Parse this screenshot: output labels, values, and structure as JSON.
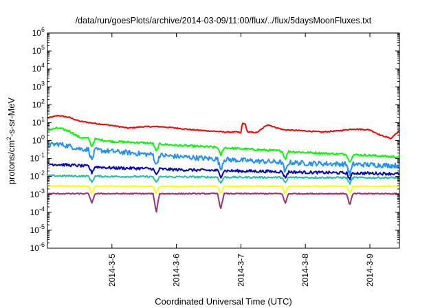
{
  "chart_data": {
    "type": "line",
    "title": "/data/run/goesPlots/archive/2014-03-09/11:00/flux/../flux/5daysMoonFluxes.txt",
    "xlabel": "Coordinated Universal Time (UTC)",
    "ylabel": {
      "base": "protons/cm",
      "sup": "2",
      "rest": "-s-sr-MeV"
    },
    "y_scale": "log",
    "ylim": [
      1e-06,
      1000000.0
    ],
    "y_ticks": [
      {
        "value": 1000000.0,
        "base": "10",
        "exp": "6"
      },
      {
        "value": 100000.0,
        "base": "10",
        "exp": "5"
      },
      {
        "value": 10000.0,
        "base": "10",
        "exp": "4"
      },
      {
        "value": 1000.0,
        "base": "10",
        "exp": "3"
      },
      {
        "value": 100.0,
        "base": "10",
        "exp": "2"
      },
      {
        "value": 10.0,
        "base": "10",
        "exp": "1"
      },
      {
        "value": 1.0,
        "base": "10",
        "exp": "0"
      },
      {
        "value": 0.1,
        "base": "10",
        "exp": "-1"
      },
      {
        "value": 0.01,
        "base": "10",
        "exp": "-2"
      },
      {
        "value": 0.001,
        "base": "10",
        "exp": "-3"
      },
      {
        "value": 0.0001,
        "base": "10",
        "exp": "-4"
      },
      {
        "value": 1e-05,
        "base": "10",
        "exp": "-5"
      },
      {
        "value": 1e-06,
        "base": "10",
        "exp": "-6"
      }
    ],
    "xlim": [
      "2014-03-04T00:00",
      "2014-03-09T11:00"
    ],
    "x_ticks": [
      {
        "value": "2014-03-05T00:00",
        "label": "2014-3-5"
      },
      {
        "value": "2014-03-06T00:00",
        "label": "2014-3-6"
      },
      {
        "value": "2014-03-07T00:00",
        "label": "2014-3-7"
      },
      {
        "value": "2014-03-08T00:00",
        "label": "2014-3-8"
      },
      {
        "value": "2014-03-09T00:00",
        "label": "2014-3-9"
      }
    ],
    "grid": false,
    "legend": "none",
    "series": [
      {
        "color": "#ff0000",
        "points": [
          [
            "2014-03-04T00:00",
            18
          ],
          [
            "2014-03-04T04:00",
            25
          ],
          [
            "2014-03-04T08:00",
            20
          ],
          [
            "2014-03-04T12:00",
            12
          ],
          [
            "2014-03-04T18:00",
            9
          ],
          [
            "2014-03-05T00:00",
            7
          ],
          [
            "2014-03-05T06:00",
            5
          ],
          [
            "2014-03-05T12:00",
            6
          ],
          [
            "2014-03-05T18:00",
            6
          ],
          [
            "2014-03-06T00:00",
            5
          ],
          [
            "2014-03-06T06:00",
            4
          ],
          [
            "2014-03-06T12:00",
            3.5
          ],
          [
            "2014-03-06T18:00",
            3
          ],
          [
            "2014-03-06T23:00",
            3
          ],
          [
            "2014-03-07T00:00",
            2.6
          ],
          [
            "2014-03-07T00:30",
            9
          ],
          [
            "2014-03-07T01:30",
            9
          ],
          [
            "2014-03-07T02:30",
            3
          ],
          [
            "2014-03-07T06:00",
            2.8
          ],
          [
            "2014-03-07T10:00",
            8
          ],
          [
            "2014-03-07T12:00",
            6
          ],
          [
            "2014-03-07T16:00",
            4
          ],
          [
            "2014-03-08T00:00",
            3.5
          ],
          [
            "2014-03-08T06:00",
            3
          ],
          [
            "2014-03-08T12:00",
            3.5
          ],
          [
            "2014-03-08T18:00",
            4.5
          ],
          [
            "2014-03-09T00:00",
            4
          ],
          [
            "2014-03-09T04:00",
            2
          ],
          [
            "2014-03-09T08:00",
            1.3
          ],
          [
            "2014-03-09T09:00",
            2
          ],
          [
            "2014-03-09T11:00",
            3.5
          ]
        ]
      },
      {
        "color": "#00ff00",
        "points": [
          [
            "2014-03-04T00:00",
            4
          ],
          [
            "2014-03-04T04:00",
            5
          ],
          [
            "2014-03-04T08:00",
            3.5
          ],
          [
            "2014-03-04T12:00",
            1.5
          ],
          [
            "2014-03-04T18:00",
            1.2
          ],
          [
            "2014-03-05T00:00",
            0.9
          ],
          [
            "2014-03-05T12:00",
            0.75
          ],
          [
            "2014-03-06T00:00",
            0.55
          ],
          [
            "2014-03-06T12:00",
            0.45
          ],
          [
            "2014-03-07T00:00",
            0.35
          ],
          [
            "2014-03-07T12:00",
            0.28
          ],
          [
            "2014-03-08T00:00",
            0.22
          ],
          [
            "2014-03-08T12:00",
            0.18
          ],
          [
            "2014-03-09T00:00",
            0.15
          ],
          [
            "2014-03-09T11:00",
            0.12
          ]
        ]
      },
      {
        "color": "#1e90ff",
        "points": [
          [
            "2014-03-04T00:00",
            0.55
          ],
          [
            "2014-03-04T04:00",
            0.65
          ],
          [
            "2014-03-04T08:00",
            0.5
          ],
          [
            "2014-03-04T12:00",
            0.35
          ],
          [
            "2014-03-05T00:00",
            0.25
          ],
          [
            "2014-03-05T12:00",
            0.18
          ],
          [
            "2014-03-06T00:00",
            0.13
          ],
          [
            "2014-03-06T12:00",
            0.1
          ],
          [
            "2014-03-07T00:00",
            0.08
          ],
          [
            "2014-03-07T12:00",
            0.065
          ],
          [
            "2014-03-08T00:00",
            0.055
          ],
          [
            "2014-03-08T12:00",
            0.05
          ],
          [
            "2014-03-09T00:00",
            0.045
          ],
          [
            "2014-03-09T11:00",
            0.04
          ]
        ]
      },
      {
        "color": "#0000cd",
        "points": [
          [
            "2014-03-04T00:00",
            0.05
          ],
          [
            "2014-03-04T12:00",
            0.04
          ],
          [
            "2014-03-05T00:00",
            0.03
          ],
          [
            "2014-03-05T12:00",
            0.028
          ],
          [
            "2014-03-06T00:00",
            0.024
          ],
          [
            "2014-03-06T12:00",
            0.022
          ],
          [
            "2014-03-07T00:00",
            0.02
          ],
          [
            "2014-03-07T12:00",
            0.019
          ],
          [
            "2014-03-08T00:00",
            0.017
          ],
          [
            "2014-03-08T12:00",
            0.016
          ],
          [
            "2014-03-09T00:00",
            0.015
          ],
          [
            "2014-03-09T11:00",
            0.014
          ]
        ]
      },
      {
        "color": "#20c0a0",
        "points": [
          [
            "2014-03-04T00:00",
            0.011
          ],
          [
            "2014-03-05T00:00",
            0.01
          ],
          [
            "2014-03-06T00:00",
            0.0095
          ],
          [
            "2014-03-07T00:00",
            0.009
          ],
          [
            "2014-03-08T00:00",
            0.0088
          ],
          [
            "2014-03-09T00:00",
            0.0085
          ],
          [
            "2014-03-09T11:00",
            0.0085
          ]
        ]
      },
      {
        "color": "#ffff00",
        "points": [
          [
            "2014-03-04T00:00",
            0.003
          ],
          [
            "2014-03-05T00:00",
            0.0028
          ],
          [
            "2014-03-06T00:00",
            0.0028
          ],
          [
            "2014-03-07T00:00",
            0.0028
          ],
          [
            "2014-03-08T00:00",
            0.0028
          ],
          [
            "2014-03-09T00:00",
            0.0028
          ],
          [
            "2014-03-09T11:00",
            0.0028
          ]
        ]
      },
      {
        "color": "#a0306a",
        "points": [
          [
            "2014-03-04T00:00",
            0.0011
          ],
          [
            "2014-03-05T00:00",
            0.0011
          ],
          [
            "2014-03-06T00:00",
            0.0011
          ],
          [
            "2014-03-07T00:00",
            0.0011
          ],
          [
            "2014-03-08T00:00",
            0.0011
          ],
          [
            "2014-03-09T00:00",
            0.0011
          ],
          [
            "2014-03-09T11:00",
            0.0011
          ]
        ]
      }
    ],
    "dips": [
      {
        "time": "2014-03-04T16:30",
        "min": 0.0003
      },
      {
        "time": "2014-03-05T16:30",
        "min": 0.0001
      },
      {
        "time": "2014-03-06T16:30",
        "min": 0.00015
      },
      {
        "time": "2014-03-07T16:30",
        "min": 0.0003
      },
      {
        "time": "2014-03-08T16:30",
        "min": 0.00025
      }
    ]
  }
}
